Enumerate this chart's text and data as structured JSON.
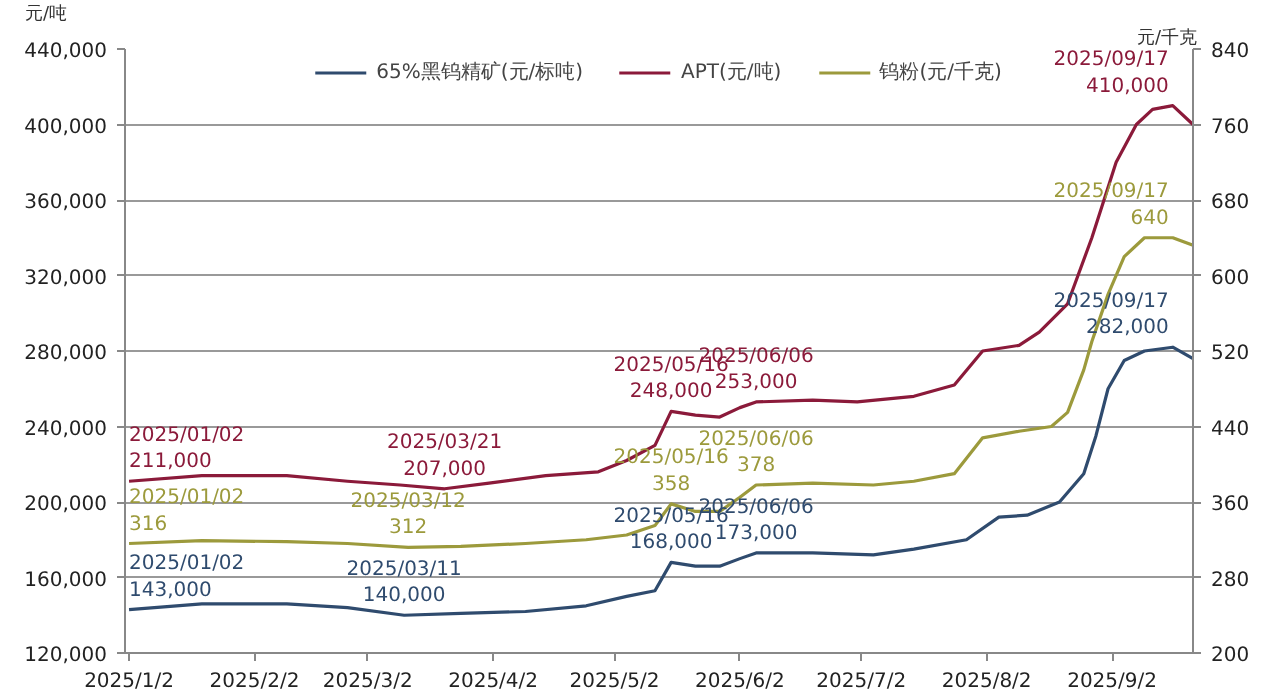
{
  "chart_data": {
    "type": "line",
    "ylabel": "元/吨",
    "y2label": "元/千克",
    "xlim": [
      "2025-01-01",
      "2025-09-22"
    ],
    "xticks": [
      {
        "value": "2025-01-02",
        "label": "2025/1/2"
      },
      {
        "value": "2025-02-02",
        "label": "2025/2/2"
      },
      {
        "value": "2025-03-02",
        "label": "2025/3/2"
      },
      {
        "value": "2025-04-02",
        "label": "2025/4/2"
      },
      {
        "value": "2025-05-02",
        "label": "2025/5/2"
      },
      {
        "value": "2025-06-02",
        "label": "2025/6/2"
      },
      {
        "value": "2025-07-02",
        "label": "2025/7/2"
      },
      {
        "value": "2025-08-02",
        "label": "2025/8/2"
      },
      {
        "value": "2025-09-02",
        "label": "2025/9/2"
      }
    ],
    "ylim": [
      120000,
      440000
    ],
    "yticks": [
      {
        "value": 120000,
        "label": "120,000"
      },
      {
        "value": 160000,
        "label": "160,000"
      },
      {
        "value": 200000,
        "label": "200,000"
      },
      {
        "value": 240000,
        "label": "240,000"
      },
      {
        "value": 280000,
        "label": "280,000"
      },
      {
        "value": 320000,
        "label": "320,000"
      },
      {
        "value": 360000,
        "label": "360,000"
      },
      {
        "value": 400000,
        "label": "400,000"
      },
      {
        "value": 440000,
        "label": "440,000"
      }
    ],
    "y2lim": [
      200,
      840
    ],
    "y2ticks": [
      200,
      280,
      360,
      440,
      520,
      600,
      680,
      760,
      840
    ],
    "grid": "y",
    "legend": "top",
    "marker": "none",
    "line_style": "solid",
    "series": [
      {
        "name": "65%黑钨精矿(元/标吨)",
        "color": "#2f4b6e",
        "x": [
          "2025-01-02",
          "2025-01-20",
          "2025-02-10",
          "2025-02-25",
          "2025-03-11",
          "2025-03-25",
          "2025-04-10",
          "2025-04-25",
          "2025-05-05",
          "2025-05-12",
          "2025-05-16",
          "2025-05-22",
          "2025-05-28",
          "2025-06-02",
          "2025-06-06",
          "2025-06-20",
          "2025-07-05",
          "2025-07-15",
          "2025-07-28",
          "2025-08-05",
          "2025-08-12",
          "2025-08-20",
          "2025-08-26",
          "2025-08-29",
          "2025-09-01",
          "2025-09-05",
          "2025-09-10",
          "2025-09-17",
          "2025-09-22"
        ],
        "values": [
          143000,
          146000,
          146000,
          144000,
          140000,
          141000,
          142000,
          145000,
          150000,
          153000,
          168000,
          166000,
          166000,
          170000,
          173000,
          173000,
          172000,
          175000,
          180000,
          192000,
          193000,
          200000,
          215000,
          235000,
          260000,
          275000,
          280000,
          282000,
          276000
        ],
        "value_labels": [
          "2025/01/02\n143,000",
          null,
          null,
          null,
          "2025/03/11\n140,000",
          null,
          null,
          null,
          null,
          null,
          "2025/05/16\n168,000",
          null,
          null,
          null,
          "2025/06/06\n173,000",
          null,
          null,
          null,
          null,
          null,
          null,
          null,
          null,
          null,
          null,
          null,
          null,
          "2025/09/17\n282,000",
          null
        ]
      },
      {
        "name": "APT(元/吨)",
        "color": "#8b1a3a",
        "x": [
          "2025-01-02",
          "2025-01-20",
          "2025-02-10",
          "2025-02-25",
          "2025-03-10",
          "2025-03-21",
          "2025-04-01",
          "2025-04-15",
          "2025-04-28",
          "2025-05-05",
          "2025-05-12",
          "2025-05-16",
          "2025-05-22",
          "2025-05-28",
          "2025-06-02",
          "2025-06-06",
          "2025-06-20",
          "2025-07-01",
          "2025-07-15",
          "2025-07-25",
          "2025-08-01",
          "2025-08-10",
          "2025-08-15",
          "2025-08-22",
          "2025-08-28",
          "2025-09-03",
          "2025-09-08",
          "2025-09-12",
          "2025-09-17",
          "2025-09-22"
        ],
        "values": [
          211000,
          214000,
          214000,
          211000,
          209000,
          207000,
          210000,
          214000,
          216000,
          222000,
          230000,
          248000,
          246000,
          245000,
          250000,
          253000,
          254000,
          253000,
          256000,
          262000,
          280000,
          283000,
          290000,
          305000,
          340000,
          380000,
          400000,
          408000,
          410000,
          400000
        ],
        "value_labels": [
          "2025/01/02\n211,000",
          null,
          null,
          null,
          null,
          "2025/03/21\n207,000",
          null,
          null,
          null,
          null,
          null,
          "2025/05/16\n248,000",
          null,
          null,
          null,
          "2025/06/06\n253,000",
          null,
          null,
          null,
          null,
          null,
          null,
          null,
          null,
          null,
          null,
          null,
          null,
          "2025/09/17\n410,000",
          null
        ]
      },
      {
        "name": "钨粉(元/千克)",
        "color": "#9c9a3c",
        "axis": "y2",
        "x": [
          "2025-01-02",
          "2025-01-20",
          "2025-02-10",
          "2025-02-25",
          "2025-03-12",
          "2025-03-25",
          "2025-04-10",
          "2025-04-25",
          "2025-05-05",
          "2025-05-12",
          "2025-05-16",
          "2025-05-22",
          "2025-05-28",
          "2025-06-02",
          "2025-06-06",
          "2025-06-20",
          "2025-07-05",
          "2025-07-15",
          "2025-07-25",
          "2025-08-01",
          "2025-08-10",
          "2025-08-18",
          "2025-08-22",
          "2025-08-26",
          "2025-08-28",
          "2025-09-01",
          "2025-09-05",
          "2025-09-10",
          "2025-09-17",
          "2025-09-22"
        ],
        "values": [
          316,
          319,
          318,
          316,
          312,
          313,
          316,
          320,
          325,
          335,
          358,
          350,
          350,
          365,
          378,
          380,
          378,
          382,
          390,
          428,
          435,
          440,
          455,
          500,
          530,
          580,
          620,
          640,
          640,
          632
        ],
        "value_labels": [
          "2025/01/02\n316",
          null,
          null,
          null,
          "2025/03/12\n312",
          null,
          null,
          null,
          null,
          null,
          "2025/05/16\n358",
          null,
          null,
          null,
          "2025/06/06\n378",
          null,
          null,
          null,
          null,
          null,
          null,
          null,
          null,
          null,
          null,
          null,
          null,
          null,
          "2025/09/17\n640",
          null
        ]
      }
    ]
  }
}
